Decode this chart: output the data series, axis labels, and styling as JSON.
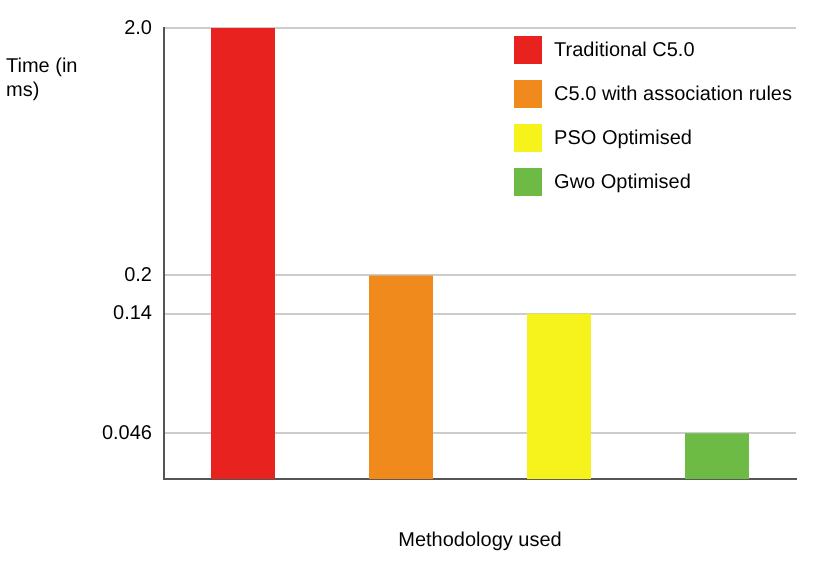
{
  "chart_data": {
    "type": "bar",
    "ylabel": "Time (in ms)",
    "xlabel": "Methodology used",
    "categories": [
      null,
      null,
      null,
      null
    ],
    "series": [
      {
        "name": "Traditional C5.0",
        "color": "#e8231f",
        "values": [
          2.0,
          null,
          null,
          null
        ]
      },
      {
        "name": "C5.0 with association rules",
        "color": "#f08a1c",
        "values": [
          null,
          0.2,
          null,
          null
        ]
      },
      {
        "name": "PSO Optimised",
        "color": "#f5f21c",
        "values": [
          null,
          null,
          0.14,
          null
        ]
      },
      {
        "name": "Gwo Optimised",
        "color": "#6dbb45",
        "values": [
          null,
          null,
          null,
          0.046
        ]
      }
    ],
    "ylim": [
      0.03,
      2.0
    ],
    "log": true,
    "yticks": [
      0.046,
      0.14,
      0.2,
      {
        "value": 2.0,
        "label": "2.0"
      }
    ],
    "grid": "y",
    "legend": "top right"
  }
}
